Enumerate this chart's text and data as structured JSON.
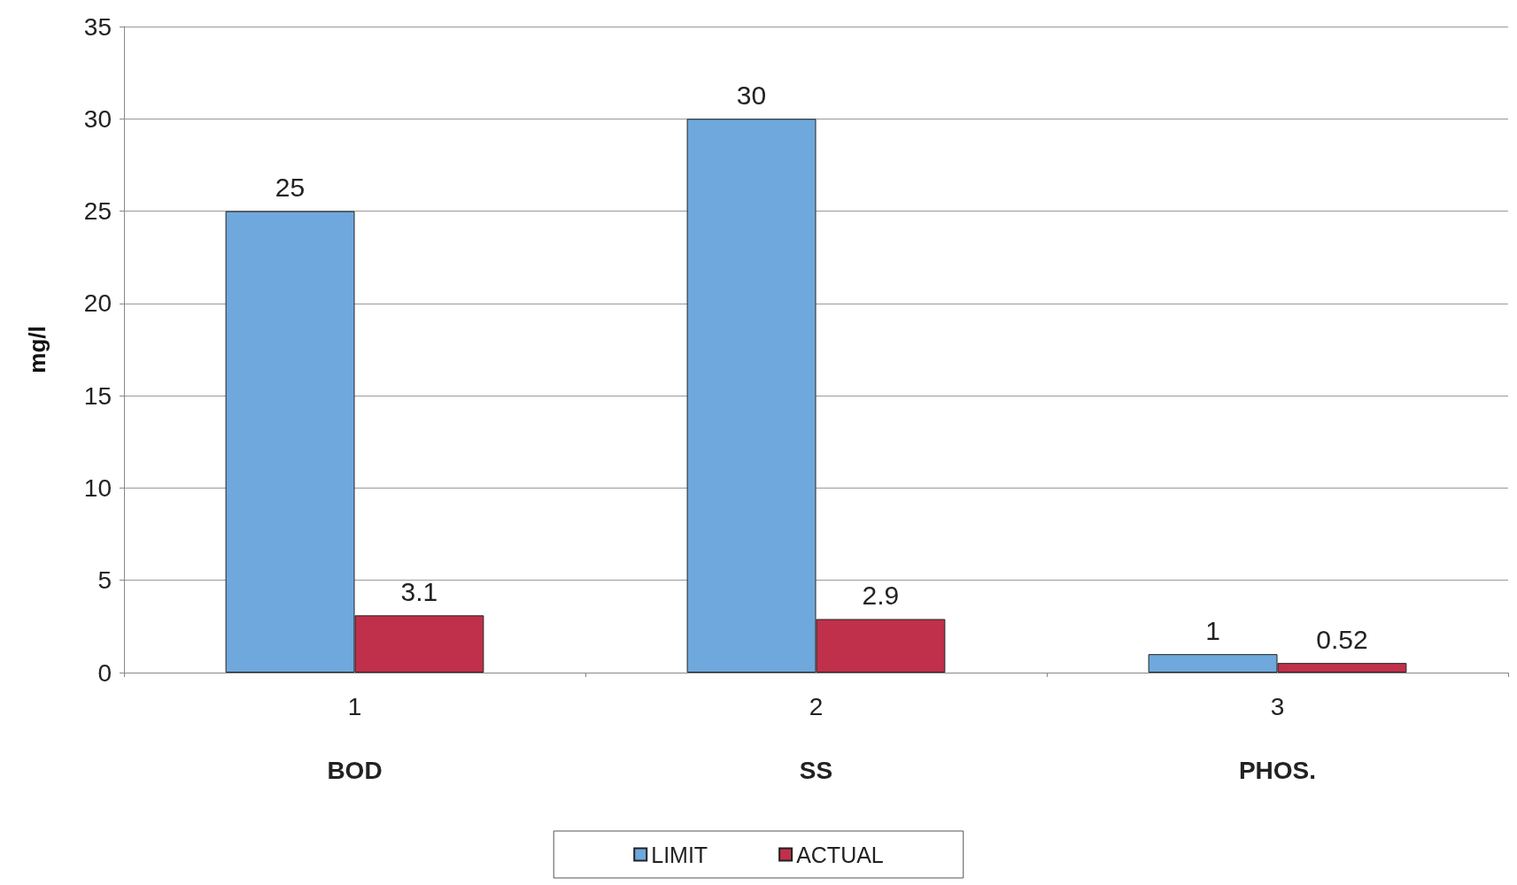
{
  "chart_data": {
    "type": "bar",
    "ylabel": "mg/l",
    "categories": [
      "1",
      "2",
      "3"
    ],
    "series": [
      {
        "name": "LIMIT",
        "color": "#6fa8dc",
        "values": [
          25,
          30,
          1
        ]
      },
      {
        "name": "ACTUAL",
        "color": "#c0304a",
        "values": [
          3.1,
          2.9,
          0.52
        ]
      }
    ],
    "annotations": [
      "BOD",
      "SS",
      "PHOS."
    ],
    "ylim": [
      0,
      35
    ],
    "yticks": [
      0,
      5,
      10,
      15,
      20,
      25,
      30,
      35
    ],
    "grid": "y",
    "legend": "bottom",
    "data_labels": true
  }
}
